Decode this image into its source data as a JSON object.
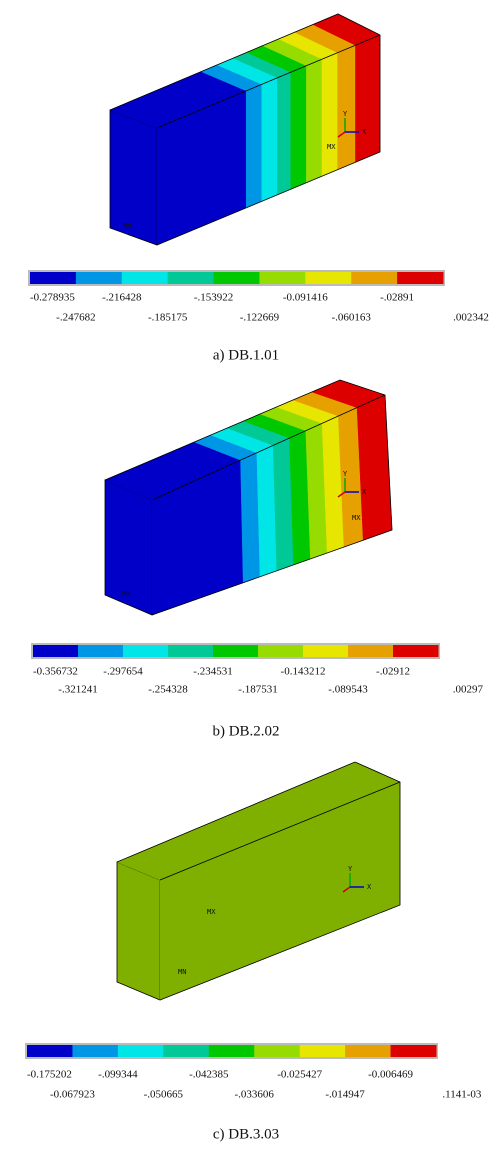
{
  "panels": [
    {
      "caption": "a) DB.1.01",
      "legend": {
        "top": [
          "-0.278935",
          "-.216428",
          "-.153922",
          "-0.091416",
          "-.02891"
        ],
        "bottom": [
          "-.247682",
          "-.185175",
          "-.122669",
          "-.060163",
          ".002342"
        ]
      },
      "labels": {
        "max": "MX",
        "min": "MN"
      },
      "axes": {
        "x": "X",
        "y": "Y"
      }
    },
    {
      "caption": "b) DB.2.02",
      "legend": {
        "top": [
          "-0.356732",
          "-.297654",
          "-.234531",
          "-0.143212",
          "-.02912"
        ],
        "bottom": [
          "-.321241",
          "-.254328",
          "-.187531",
          "-.089543",
          ".00297"
        ]
      },
      "labels": {
        "max": "MX",
        "min": "MN"
      },
      "axes": {
        "x": "X",
        "y": "Y"
      }
    },
    {
      "caption": "c) DB.3.03",
      "legend": {
        "top": [
          "-0.175202",
          "-.099344",
          "-.042385",
          "-0.025427",
          "-0.006469"
        ],
        "bottom": [
          "-0.067923",
          "-.050665",
          "-.033606",
          "-.014947",
          ".1141-03"
        ]
      },
      "labels": {
        "max": "MX",
        "min": "MN"
      },
      "axes": {
        "x": "X",
        "y": "Y"
      }
    }
  ]
}
